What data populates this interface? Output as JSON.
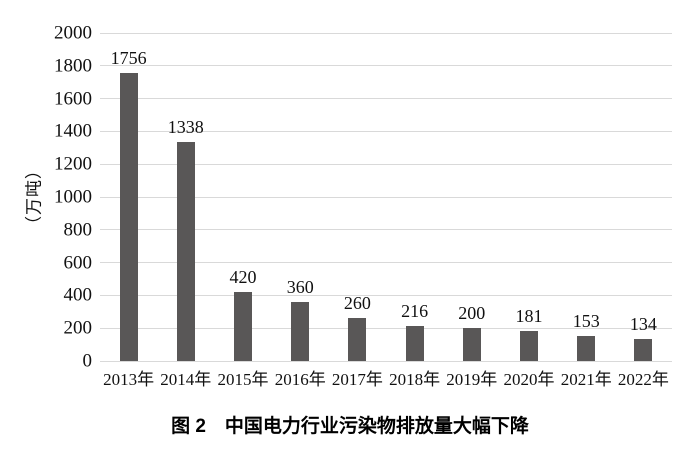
{
  "chart_data": {
    "type": "bar",
    "title": "图 2　中国电力行业污染物排放量大幅下降",
    "ylabel": "（万吨）",
    "xlabel": "",
    "categories": [
      "2013年",
      "2014年",
      "2015年",
      "2016年",
      "2017年",
      "2018年",
      "2019年",
      "2020年",
      "2021年",
      "2022年"
    ],
    "values": [
      1756,
      1338,
      420,
      360,
      260,
      216,
      200,
      181,
      153,
      134
    ],
    "value_labels": [
      "1756",
      "1338",
      "420",
      "360",
      "260",
      "216",
      "200",
      "181",
      "153",
      "134"
    ],
    "ylim": [
      0,
      2000
    ],
    "yticks": [
      0,
      200,
      400,
      600,
      800,
      1000,
      1200,
      1400,
      1600,
      1800,
      2000
    ],
    "grid": "horizontal",
    "legend": "none",
    "bar_color": "#595757",
    "gridline_color": "#d9d9d9",
    "text_color": "#111111"
  }
}
